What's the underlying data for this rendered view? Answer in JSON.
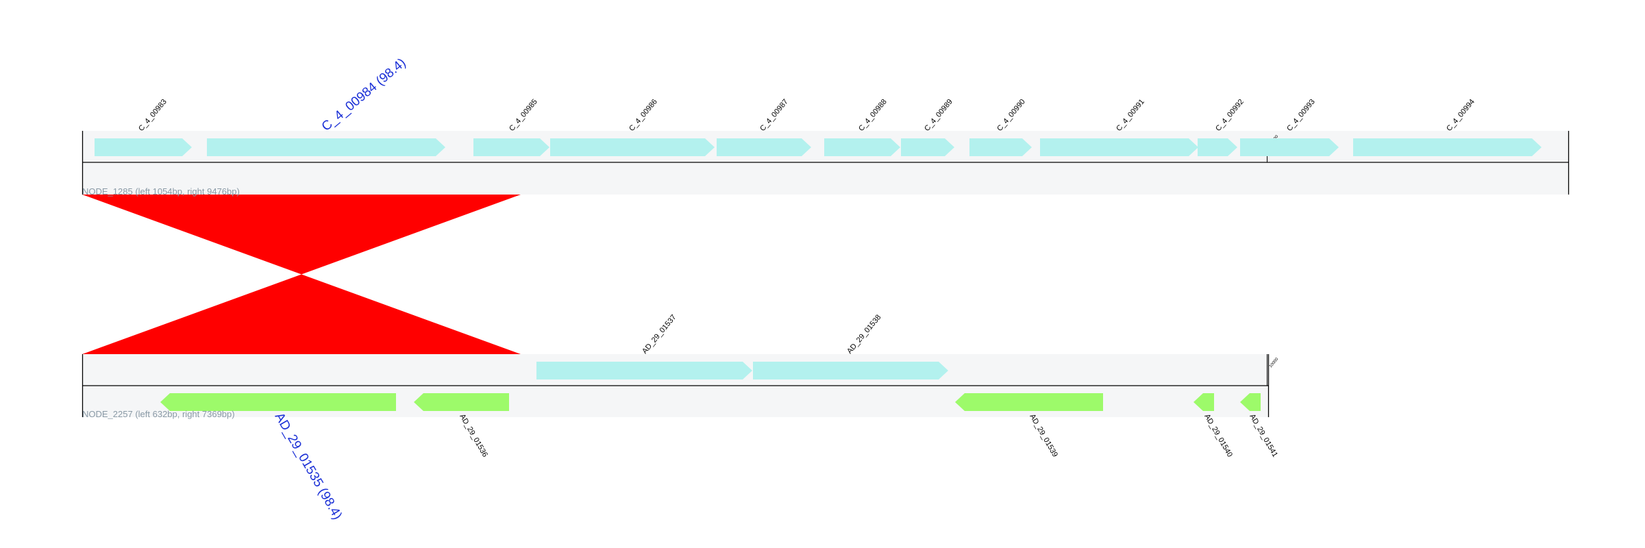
{
  "colors": {
    "forward_gene": "#b3f1ee",
    "reverse_gene": "#9dfa6a",
    "track_band": "#f5f6f7",
    "link": "#ff0000",
    "highlight_text": "#1a2fd6",
    "node_text": "#8a9aa6"
  },
  "tracks": [
    {
      "id": "top",
      "node_label": "NODE_1285 (left 1054bp, right 9476bp)",
      "cut_marker": "10000",
      "genes": [
        {
          "name": "C_4_00983",
          "strand": "+"
        },
        {
          "name": "C_4_00984 (98.4)",
          "strand": "+",
          "highlight": true
        },
        {
          "name": "C_4_00985",
          "strand": "+"
        },
        {
          "name": "C_4_00986",
          "strand": "+"
        },
        {
          "name": "C_4_00987",
          "strand": "+"
        },
        {
          "name": "C_4_00988",
          "strand": "+"
        },
        {
          "name": "C_4_00989",
          "strand": "+"
        },
        {
          "name": "C_4_00990",
          "strand": "+"
        },
        {
          "name": "C_4_00991",
          "strand": "+"
        },
        {
          "name": "C_4_00992",
          "strand": "+"
        },
        {
          "name": "C_4_00993",
          "strand": "+"
        },
        {
          "name": "C_4_00994",
          "strand": "+"
        }
      ]
    },
    {
      "id": "bottom",
      "node_label": "NODE_2257 (left 632bp, right 7369bp)",
      "cut_marker": "10000",
      "genes": [
        {
          "name": "AD_29_01535 (98.4)",
          "strand": "-",
          "highlight": true
        },
        {
          "name": "AD_29_01536",
          "strand": "-"
        },
        {
          "name": "AD_29_01537",
          "strand": "+"
        },
        {
          "name": "AD_29_01538",
          "strand": "+"
        },
        {
          "name": "AD_29_01539",
          "strand": "-"
        },
        {
          "name": "AD_29_01540",
          "strand": "-"
        },
        {
          "name": "AD_29_01541",
          "strand": "-"
        }
      ]
    }
  ]
}
